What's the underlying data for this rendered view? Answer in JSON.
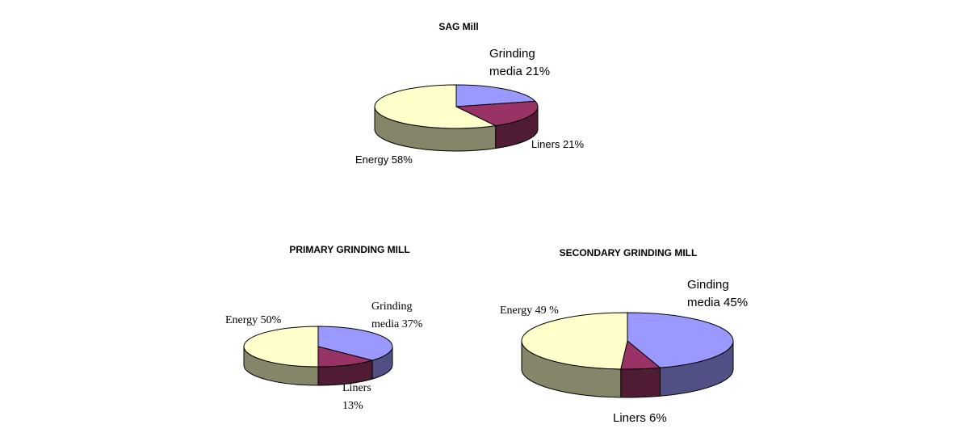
{
  "colors": {
    "grinding_media": "#9999ff",
    "liners": "#993366",
    "energy": "#ffffcc"
  },
  "chart_data": [
    {
      "type": "pie",
      "style": "3d",
      "title": "SAG Mill",
      "slices": [
        {
          "key": "grinding_media",
          "label_lines": [
            "Grinding",
            "media 21%"
          ],
          "value": 21
        },
        {
          "key": "liners",
          "label_lines": [
            "Liners 21%"
          ],
          "value": 21
        },
        {
          "key": "energy",
          "label_lines": [
            "Energy 58%"
          ],
          "value": 58
        }
      ]
    },
    {
      "type": "pie",
      "style": "3d",
      "title": "PRIMARY GRINDING MILL",
      "slices": [
        {
          "key": "grinding_media",
          "label_lines": [
            "Grinding",
            "media 37%"
          ],
          "value": 37
        },
        {
          "key": "liners",
          "label_lines": [
            "Liners",
            "13%"
          ],
          "value": 13
        },
        {
          "key": "energy",
          "label_lines": [
            "Energy 50%"
          ],
          "value": 50
        }
      ]
    },
    {
      "type": "pie",
      "style": "3d",
      "title": "SECONDARY GRINDING MILL",
      "slices": [
        {
          "key": "grinding_media",
          "label_lines": [
            "Ginding",
            "media 45%"
          ],
          "value": 45
        },
        {
          "key": "liners",
          "label_lines": [
            "Liners 6%"
          ],
          "value": 6
        },
        {
          "key": "energy",
          "label_lines": [
            "Energy 49 %"
          ],
          "value": 49
        }
      ]
    }
  ]
}
